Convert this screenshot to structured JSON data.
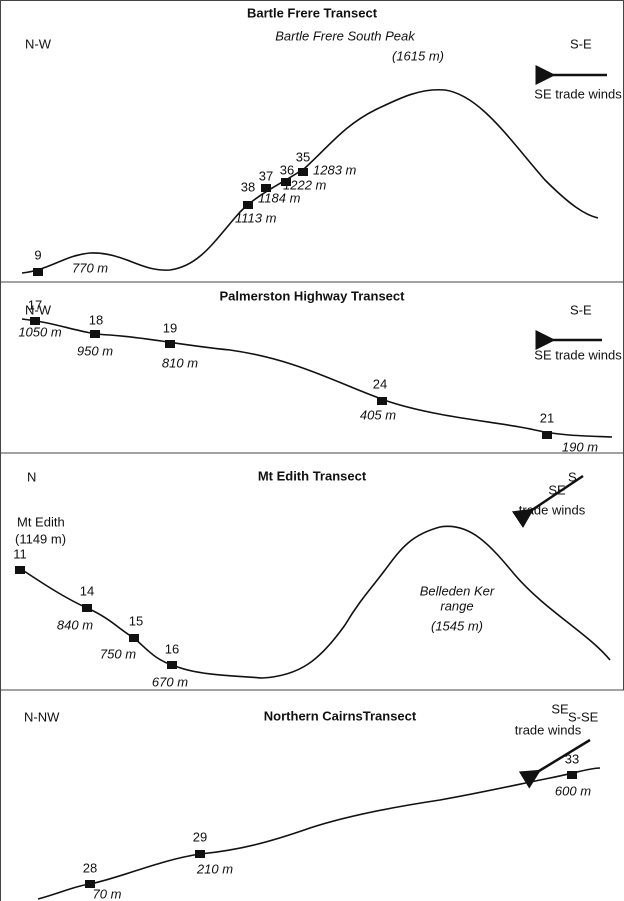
{
  "panels": [
    {
      "title": "Bartle Frere Transect",
      "left": "N-W",
      "right": "S-E",
      "wind": [
        "SE trade winds"
      ],
      "peak": [
        "Bartle Frere South Peak",
        "(1615 m)"
      ],
      "sites": [
        {
          "id": "9",
          "elevation": "770 m"
        },
        {
          "id": "38",
          "elevation": "1113 m"
        },
        {
          "id": "37",
          "elevation": "1184 m"
        },
        {
          "id": "36",
          "elevation": "1222 m"
        },
        {
          "id": "35",
          "elevation": "1283 m"
        }
      ]
    },
    {
      "title": "Palmerston Highway Transect",
      "left": "N-W",
      "right": "S-E",
      "wind": [
        "SE trade winds"
      ],
      "sites": [
        {
          "id": "17",
          "elevation": "1050 m"
        },
        {
          "id": "18",
          "elevation": "950 m"
        },
        {
          "id": "19",
          "elevation": "810 m"
        },
        {
          "id": "24",
          "elevation": "405 m"
        },
        {
          "id": "21",
          "elevation": "190 m"
        }
      ]
    },
    {
      "title": "Mt Edith Transect",
      "left": "N",
      "right": "S",
      "wind": [
        "SE",
        "trade winds"
      ],
      "start": [
        "Mt Edith",
        "(1149 m)"
      ],
      "peak": [
        "Belleden Ker",
        "range",
        "(1545 m)"
      ],
      "sites": [
        {
          "id": "11"
        },
        {
          "id": "14",
          "elevation": "840 m"
        },
        {
          "id": "15",
          "elevation": "750 m"
        },
        {
          "id": "16",
          "elevation": "670 m"
        }
      ]
    },
    {
      "title": "Northern CairnsTransect",
      "left": "N-NW",
      "right": "S-SE",
      "wind": [
        "SE",
        "trade winds"
      ],
      "sites": [
        {
          "id": "28",
          "elevation": "70 m"
        },
        {
          "id": "29",
          "elevation": "210 m"
        },
        {
          "id": "33",
          "elevation": "600 m"
        }
      ]
    }
  ]
}
